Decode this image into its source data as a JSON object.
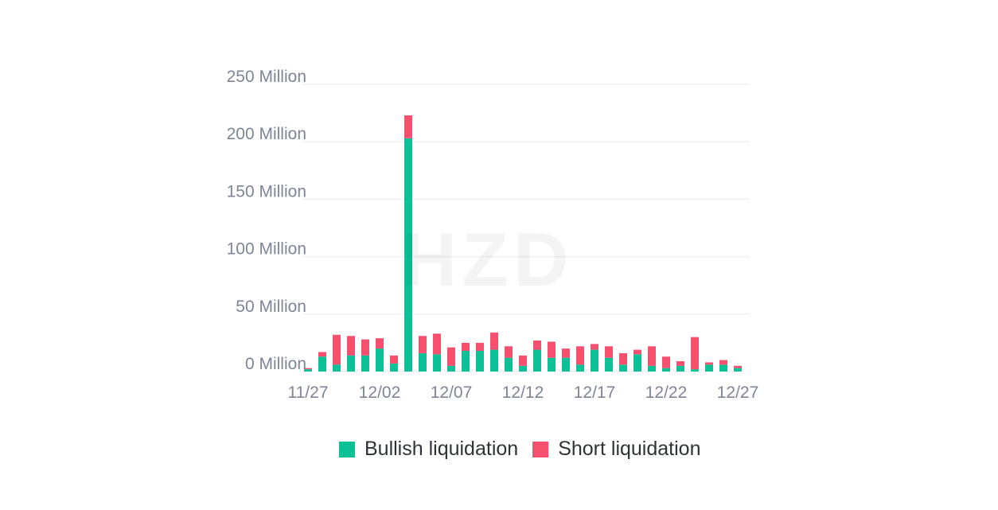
{
  "chart_data": {
    "type": "bar",
    "stacked": true,
    "x": [
      "11/27",
      "11/28",
      "11/29",
      "11/30",
      "12/01",
      "12/02",
      "12/03",
      "12/04",
      "12/05",
      "12/06",
      "12/07",
      "12/08",
      "12/09",
      "12/10",
      "12/11",
      "12/12",
      "12/13",
      "12/14",
      "12/15",
      "12/16",
      "12/17",
      "12/18",
      "12/19",
      "12/20",
      "12/21",
      "12/22",
      "12/23",
      "12/24",
      "12/25",
      "12/26",
      "12/27"
    ],
    "x_tick_labels": [
      "11/27",
      "12/02",
      "12/07",
      "12/12",
      "12/17",
      "12/22",
      "12/27"
    ],
    "y_tick_labels": [
      "250 Million",
      "200 Million",
      "150 Million",
      "100 Million",
      "50 Million",
      "0 Million"
    ],
    "ylim": [
      0,
      250
    ],
    "y_unit": "Million",
    "grid": true,
    "legend_position": "bottom",
    "series": [
      {
        "name": "Bullish liquidation",
        "color": "#0cc196",
        "values": [
          2,
          13,
          6,
          14,
          14,
          20,
          7,
          203,
          16,
          15,
          5,
          18,
          18,
          19,
          12,
          5,
          19,
          12,
          12,
          6,
          19,
          12,
          6,
          15,
          5,
          3,
          5,
          2,
          6,
          6,
          3
        ]
      },
      {
        "name": "Short liquidation",
        "color": "#f5506e",
        "values": [
          1,
          4,
          26,
          17,
          14,
          9,
          7,
          20,
          15,
          18,
          16,
          7,
          7,
          15,
          10,
          9,
          8,
          14,
          8,
          16,
          5,
          10,
          10,
          4,
          17,
          10,
          4,
          28,
          2,
          4,
          2
        ]
      }
    ]
  },
  "watermark": "HZD"
}
